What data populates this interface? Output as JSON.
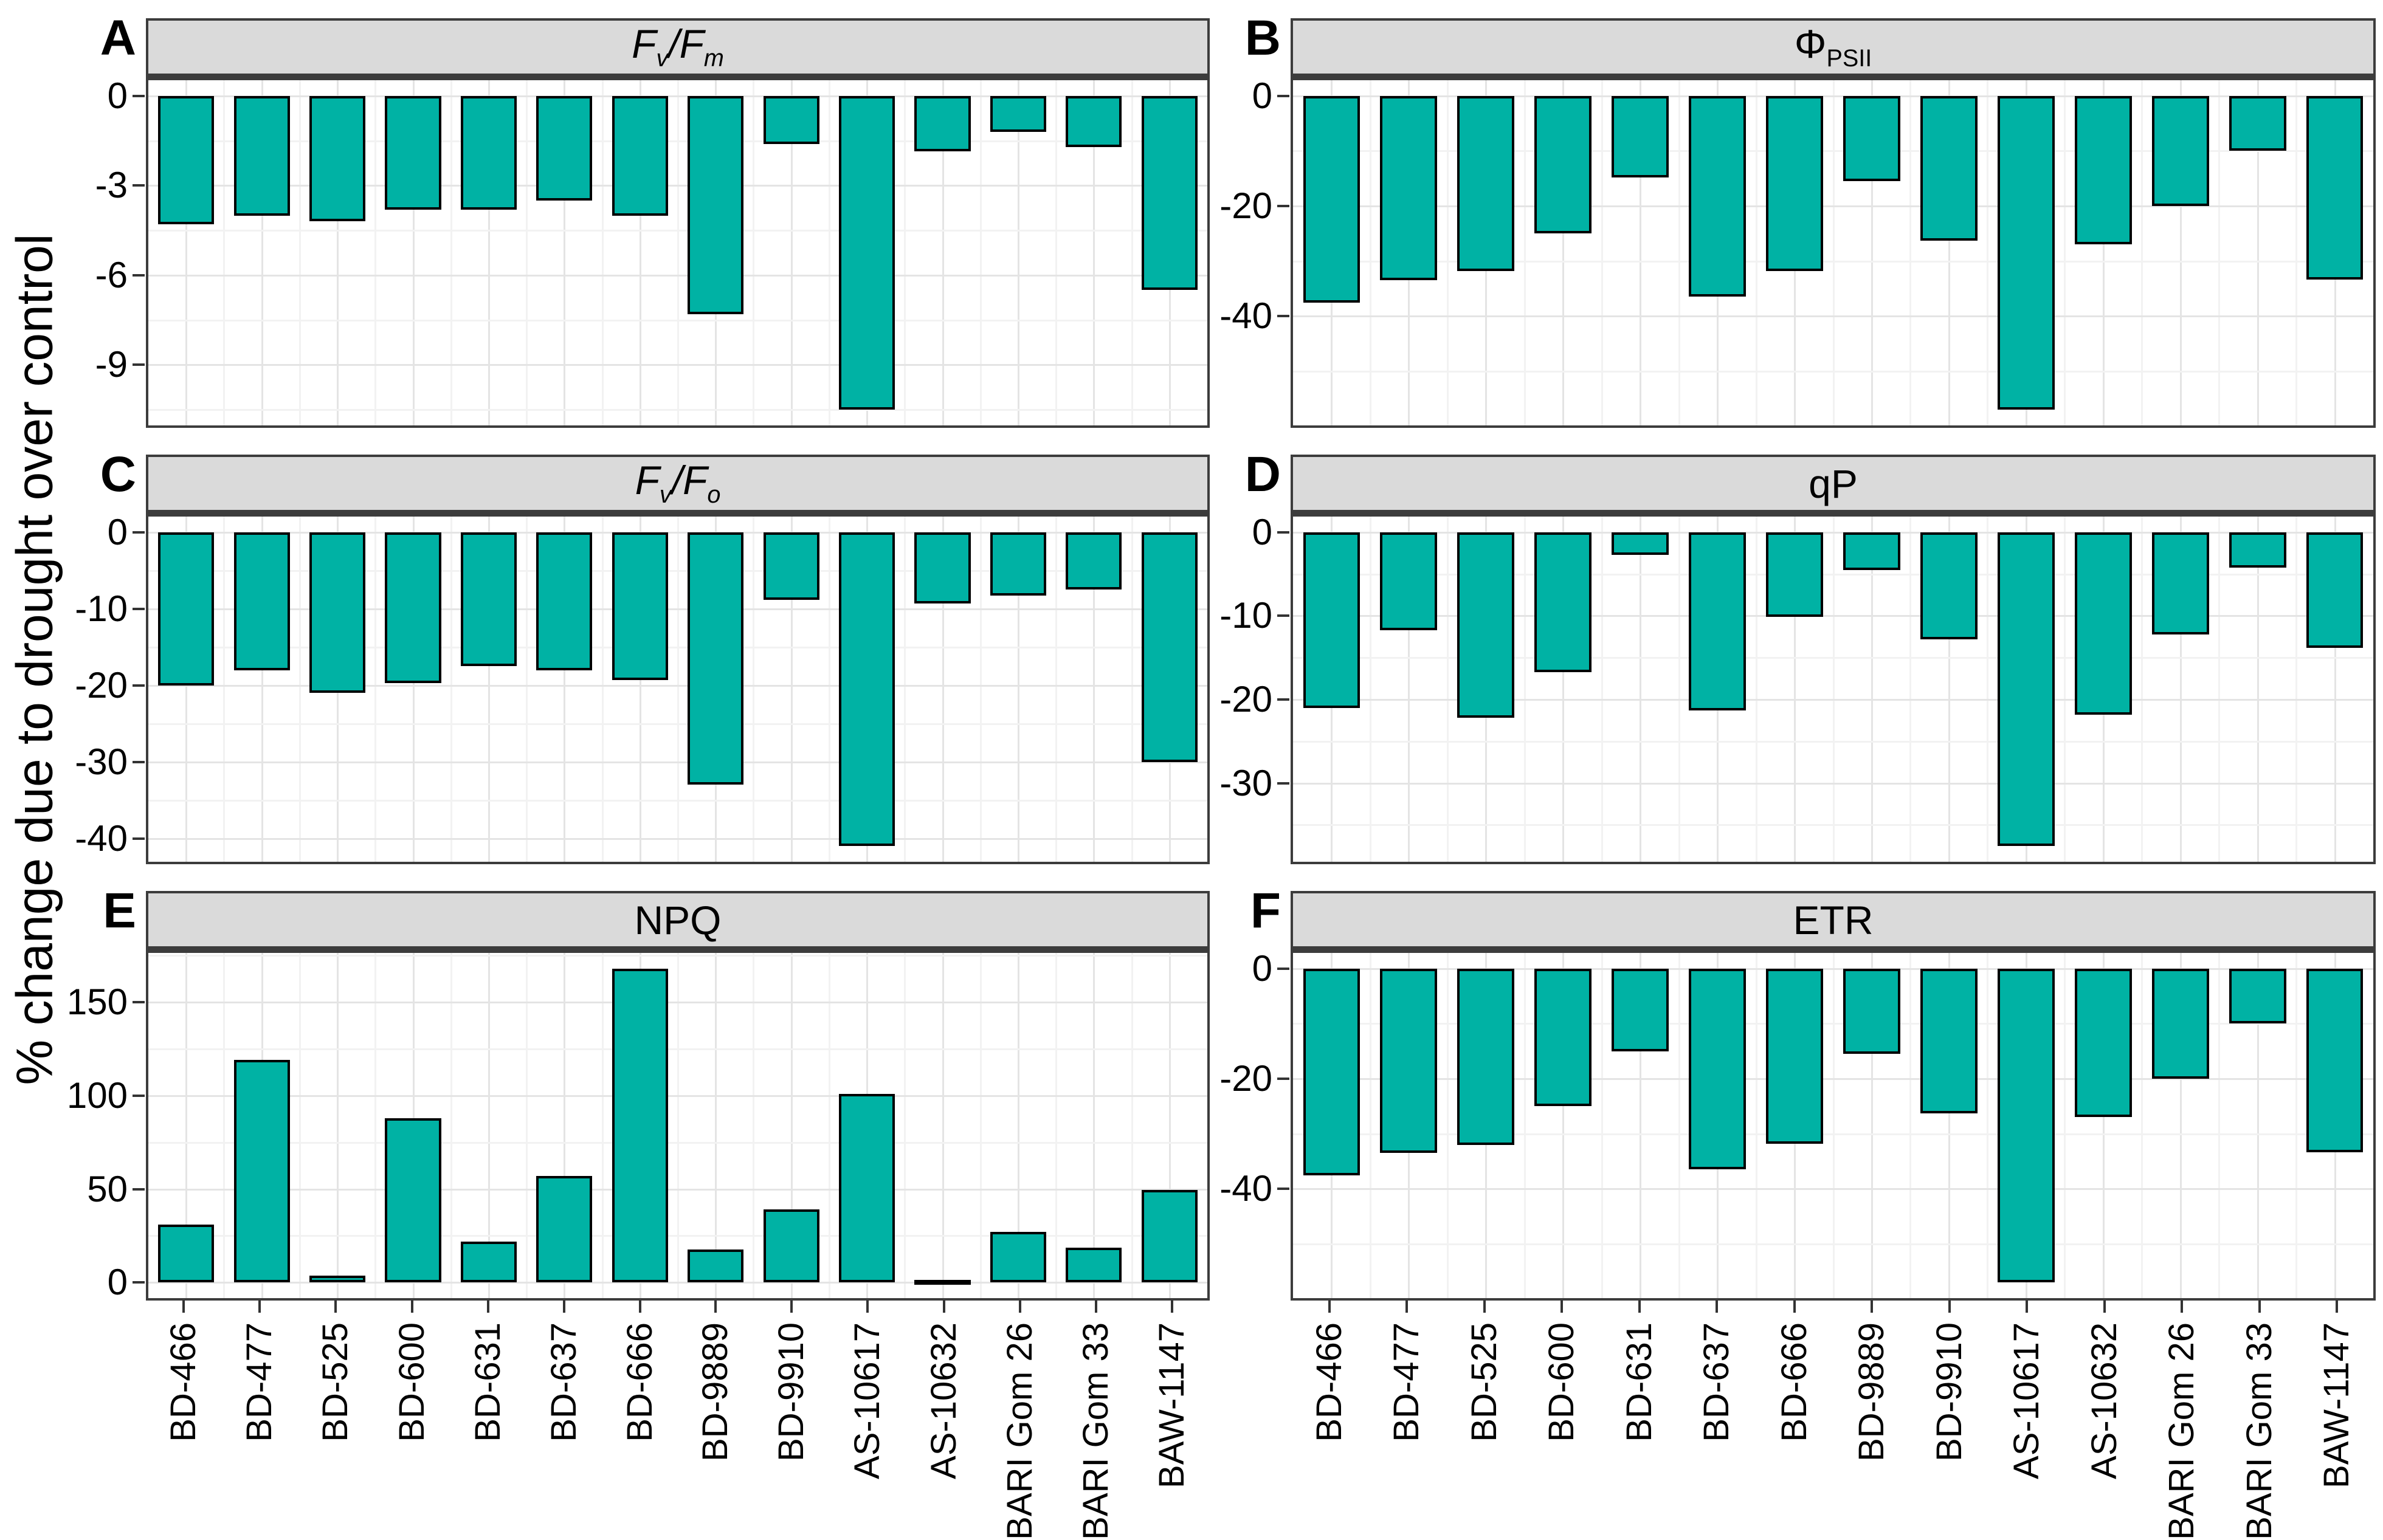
{
  "figure": {
    "ylabel": "% change due to drought over control",
    "bar_fill": "#00B2A4",
    "bar_stroke": "#000000",
    "strip_bg": "#DADADA",
    "panel_border": "#3C3C3C",
    "grid_major": "#E4E4E4",
    "grid_minor": "#F2F2F2",
    "categories": [
      "BD-466",
      "BD-477",
      "BD-525",
      "BD-600",
      "BD-631",
      "BD-637",
      "BD-666",
      "BD-9889",
      "BD-9910",
      "AS-10617",
      "AS-10632",
      "BARI Gom 26",
      "BARI Gom 33",
      "BAW-1147"
    ]
  },
  "chart_data": [
    {
      "type": "bar",
      "panel": "A",
      "title": "Fv/Fm",
      "title_rich": [
        {
          "t": "F",
          "i": true
        },
        {
          "t": "v",
          "i": true,
          "s": true
        },
        {
          "t": "/",
          "i": true
        },
        {
          "t": "F",
          "i": true
        },
        {
          "t": "m",
          "i": true,
          "s": true
        }
      ],
      "categories": [
        "BD-466",
        "BD-477",
        "BD-525",
        "BD-600",
        "BD-631",
        "BD-637",
        "BD-666",
        "BD-9889",
        "BD-9910",
        "AS-10617",
        "AS-10632",
        "BARI Gom 26",
        "BARI Gom 33",
        "BAW-1147"
      ],
      "values": [
        -4.3,
        -4.0,
        -4.2,
        -3.8,
        -3.8,
        -3.5,
        -4.0,
        -7.3,
        -1.6,
        -10.5,
        -1.85,
        -1.2,
        -1.7,
        -6.5
      ],
      "yticks": [
        0,
        -3,
        -6,
        -9
      ],
      "ylim": [
        0.53,
        -11.03
      ],
      "ylabel": "% change due to drought over control",
      "grid": true,
      "legend": "none"
    },
    {
      "type": "bar",
      "panel": "B",
      "title": "ΦPSII",
      "title_rich": [
        {
          "t": "Φ"
        },
        {
          "t": "PSII",
          "s": true
        }
      ],
      "categories": [
        "BD-466",
        "BD-477",
        "BD-525",
        "BD-600",
        "BD-631",
        "BD-637",
        "BD-666",
        "BD-9889",
        "BD-9910",
        "AS-10617",
        "AS-10632",
        "BARI Gom 26",
        "BARI Gom 33",
        "BAW-1147"
      ],
      "values": [
        -37.5,
        -33.5,
        -31.8,
        -25,
        -14.8,
        -36.5,
        -31.8,
        -15.5,
        -26.3,
        -57,
        -26.9,
        -20,
        -10,
        -33.4
      ],
      "yticks": [
        0,
        -20,
        -40
      ],
      "ylim": [
        2.85,
        -59.85
      ],
      "ylabel": "% change due to drought over control",
      "grid": true,
      "legend": "none"
    },
    {
      "type": "bar",
      "panel": "C",
      "title": "Fv/Fo",
      "title_rich": [
        {
          "t": "F",
          "i": true
        },
        {
          "t": "v",
          "i": true,
          "s": true
        },
        {
          "t": "/",
          "i": true
        },
        {
          "t": "F",
          "i": true
        },
        {
          "t": "o",
          "i": true,
          "s": true
        }
      ],
      "categories": [
        "BD-466",
        "BD-477",
        "BD-525",
        "BD-600",
        "BD-631",
        "BD-637",
        "BD-666",
        "BD-9889",
        "BD-9910",
        "AS-10617",
        "AS-10632",
        "BARI Gom 26",
        "BARI Gom 33",
        "BAW-1147"
      ],
      "values": [
        -20,
        -18,
        -21,
        -19.7,
        -17.5,
        -18,
        -19.3,
        -33,
        -8.8,
        -41,
        -9.3,
        -8.3,
        -7.5,
        -30
      ],
      "yticks": [
        0,
        -10,
        -20,
        -30,
        -40
      ],
      "ylim": [
        2.05,
        -43.05
      ],
      "ylabel": "% change due to drought over control",
      "grid": true,
      "legend": "none"
    },
    {
      "type": "bar",
      "panel": "D",
      "title": "qP",
      "title_rich": [
        {
          "t": "qP"
        }
      ],
      "categories": [
        "BD-466",
        "BD-477",
        "BD-525",
        "BD-600",
        "BD-631",
        "BD-637",
        "BD-666",
        "BD-9889",
        "BD-9910",
        "AS-10617",
        "AS-10632",
        "BARI Gom 26",
        "BARI Gom 33",
        "BAW-1147"
      ],
      "values": [
        -21,
        -11.7,
        -22.2,
        -16.7,
        -2.7,
        -21.3,
        -10.1,
        -4.5,
        -12.8,
        -37.5,
        -21.8,
        -12.2,
        -4.2,
        -13.8
      ],
      "yticks": [
        0,
        -10,
        -20,
        -30
      ],
      "ylim": [
        1.88,
        -39.4
      ],
      "ylabel": "% change due to drought over control",
      "grid": true,
      "legend": "none"
    },
    {
      "type": "bar",
      "panel": "E",
      "title": "NPQ",
      "title_rich": [
        {
          "t": "NPQ"
        }
      ],
      "categories": [
        "BD-466",
        "BD-477",
        "BD-525",
        "BD-600",
        "BD-631",
        "BD-637",
        "BD-666",
        "BD-9889",
        "BD-9910",
        "AS-10617",
        "AS-10632",
        "BARI Gom 26",
        "BARI Gom 33",
        "BAW-1147"
      ],
      "values": [
        31,
        119,
        3.5,
        88,
        22,
        57,
        168,
        17.5,
        39,
        101,
        1.5,
        27,
        18.5,
        49.5
      ],
      "yticks": [
        0,
        50,
        100,
        150
      ],
      "ylim": [
        176.4,
        -8.4
      ],
      "ylabel": "% change due to drought over control",
      "grid": true,
      "legend": "none"
    },
    {
      "type": "bar",
      "panel": "F",
      "title": "ETR",
      "title_rich": [
        {
          "t": "ETR"
        }
      ],
      "categories": [
        "BD-466",
        "BD-477",
        "BD-525",
        "BD-600",
        "BD-631",
        "BD-637",
        "BD-666",
        "BD-9889",
        "BD-9910",
        "AS-10617",
        "AS-10632",
        "BARI Gom 26",
        "BARI Gom 33",
        "BAW-1147"
      ],
      "values": [
        -37.5,
        -33.5,
        -32,
        -25,
        -15,
        -36.5,
        -31.8,
        -15.5,
        -26.3,
        -57,
        -26.9,
        -20,
        -10,
        -33.4
      ],
      "yticks": [
        0,
        -20,
        -40
      ],
      "ylim": [
        2.85,
        -59.85
      ],
      "ylabel": "% change due to drought over control",
      "grid": true,
      "legend": "none"
    }
  ]
}
